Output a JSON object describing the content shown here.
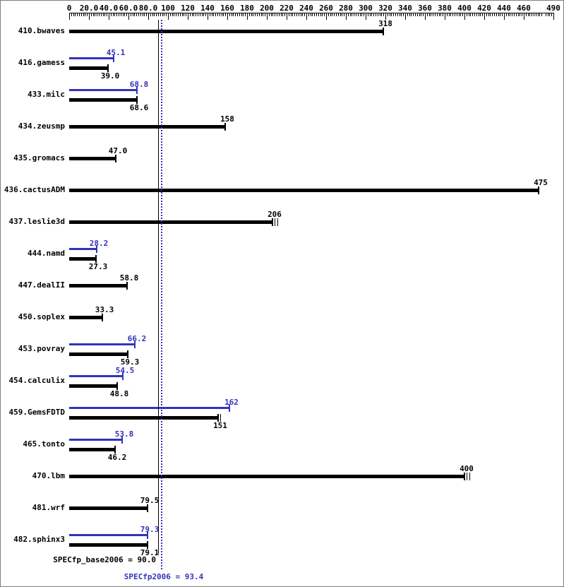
{
  "chart_data": {
    "type": "bar",
    "orientation": "horizontal",
    "title": "",
    "axis": {
      "min": 0,
      "max": 490,
      "minor_step": 2,
      "majors": [
        {
          "value": 0,
          "label": "0"
        },
        {
          "value": 20,
          "label": "20.0"
        },
        {
          "value": 40,
          "label": "40.0"
        },
        {
          "value": 60,
          "label": "60.0"
        },
        {
          "value": 80,
          "label": "80.0"
        },
        {
          "value": 100,
          "label": "100"
        },
        {
          "value": 120,
          "label": "120"
        },
        {
          "value": 140,
          "label": "140"
        },
        {
          "value": 160,
          "label": "160"
        },
        {
          "value": 180,
          "label": "180"
        },
        {
          "value": 200,
          "label": "200"
        },
        {
          "value": 220,
          "label": "220"
        },
        {
          "value": 240,
          "label": "240"
        },
        {
          "value": 260,
          "label": "260"
        },
        {
          "value": 280,
          "label": "280"
        },
        {
          "value": 300,
          "label": "300"
        },
        {
          "value": 320,
          "label": "320"
        },
        {
          "value": 340,
          "label": "340"
        },
        {
          "value": 360,
          "label": "360"
        },
        {
          "value": 380,
          "label": "380"
        },
        {
          "value": 400,
          "label": "400"
        },
        {
          "value": 420,
          "label": "420"
        },
        {
          "value": 440,
          "label": "440"
        },
        {
          "value": 460,
          "label": "460"
        },
        {
          "value": 490,
          "label": "490"
        }
      ]
    },
    "colors": {
      "base": "#000000",
      "peak": "#3333bb"
    },
    "benchmarks": [
      {
        "name": "410.bwaves",
        "base": 318,
        "base_label": "318"
      },
      {
        "name": "416.gamess",
        "peak": 45.1,
        "peak_label": "45.1",
        "base": 39.0,
        "base_label": "39.0"
      },
      {
        "name": "433.milc",
        "peak": 68.8,
        "peak_label": "68.8",
        "base": 68.6,
        "base_label": "68.6"
      },
      {
        "name": "434.zeusmp",
        "base": 158,
        "base_label": "158"
      },
      {
        "name": "435.gromacs",
        "base": 47.0,
        "base_label": "47.0"
      },
      {
        "name": "436.cactusADM",
        "base": 475,
        "base_label": "475"
      },
      {
        "name": "437.leslie3d",
        "base": 206,
        "base_label": "206",
        "base_extra_ticks": [
          2,
          5
        ]
      },
      {
        "name": "444.namd",
        "peak": 28.2,
        "peak_label": "28.2",
        "base": 27.3,
        "base_label": "27.3"
      },
      {
        "name": "447.dealII",
        "base": 58.8,
        "base_label": "58.8"
      },
      {
        "name": "450.soplex",
        "base": 33.3,
        "base_label": "33.3"
      },
      {
        "name": "453.povray",
        "peak": 66.2,
        "peak_label": "66.2",
        "base": 59.3,
        "base_label": "59.3"
      },
      {
        "name": "454.calculix",
        "peak": 54.5,
        "peak_label": "54.5",
        "base": 48.8,
        "base_label": "48.8"
      },
      {
        "name": "459.GemsFDTD",
        "peak": 162,
        "peak_label": "162",
        "base": 151,
        "base_label": "151",
        "base_extra_ticks": [
          2
        ]
      },
      {
        "name": "465.tonto",
        "peak": 53.8,
        "peak_label": "53.8",
        "base": 46.2,
        "base_label": "46.2"
      },
      {
        "name": "470.lbm",
        "base": 400,
        "base_label": "400",
        "base_extra_ticks": [
          2,
          5
        ]
      },
      {
        "name": "481.wrf",
        "base": 79.5,
        "base_label": "79.5"
      },
      {
        "name": "482.sphinx3",
        "peak": 79.3,
        "peak_label": "79.3",
        "base": 79.1,
        "base_label": "79.1"
      }
    ],
    "reference_lines": [
      {
        "name": "base_mean",
        "label": "SPECfp_base2006 = 90.0",
        "value": 90.0,
        "color": "#000000",
        "style": "solid"
      },
      {
        "name": "peak_mean",
        "label": "SPECfp2006 = 93.4",
        "value": 93.4,
        "color": "#3333bb",
        "style": "dotted"
      }
    ]
  }
}
